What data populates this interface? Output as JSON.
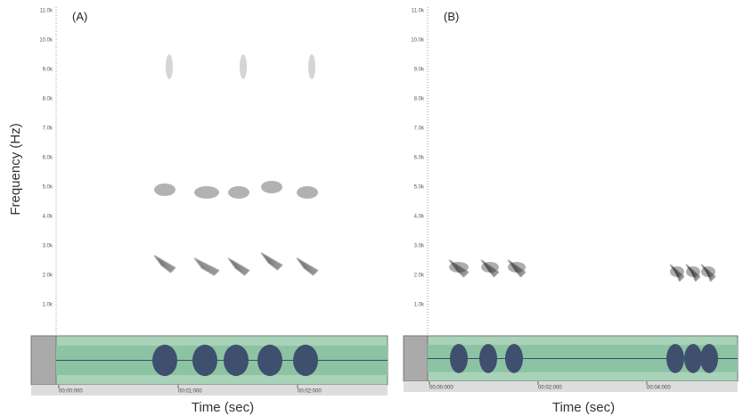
{
  "y_axis_label": "Frequency (Hz)",
  "panels": [
    {
      "label": "(A)",
      "x_label": "Time (sec)",
      "yticks": [
        "11.0k",
        "10.0k",
        "9.0k",
        "8.0k",
        "7.0k",
        "6.0k",
        "5.0k",
        "4.0k",
        "3.0k",
        "2.0k",
        "1.0k"
      ],
      "time_labels": [
        "00:00:000",
        "00:01:000",
        "00:02:000"
      ]
    },
    {
      "label": "(B)",
      "x_label": "Time (sec)",
      "yticks": [
        "11.0k",
        "10.0k",
        "9.0k",
        "8.0k",
        "7.0k",
        "6.0k",
        "5.0k",
        "4.0k",
        "3.0k",
        "2.0k",
        "1.0k"
      ],
      "time_labels": [
        "00:00:000",
        "00:02:000",
        "00:04:000"
      ]
    }
  ]
}
